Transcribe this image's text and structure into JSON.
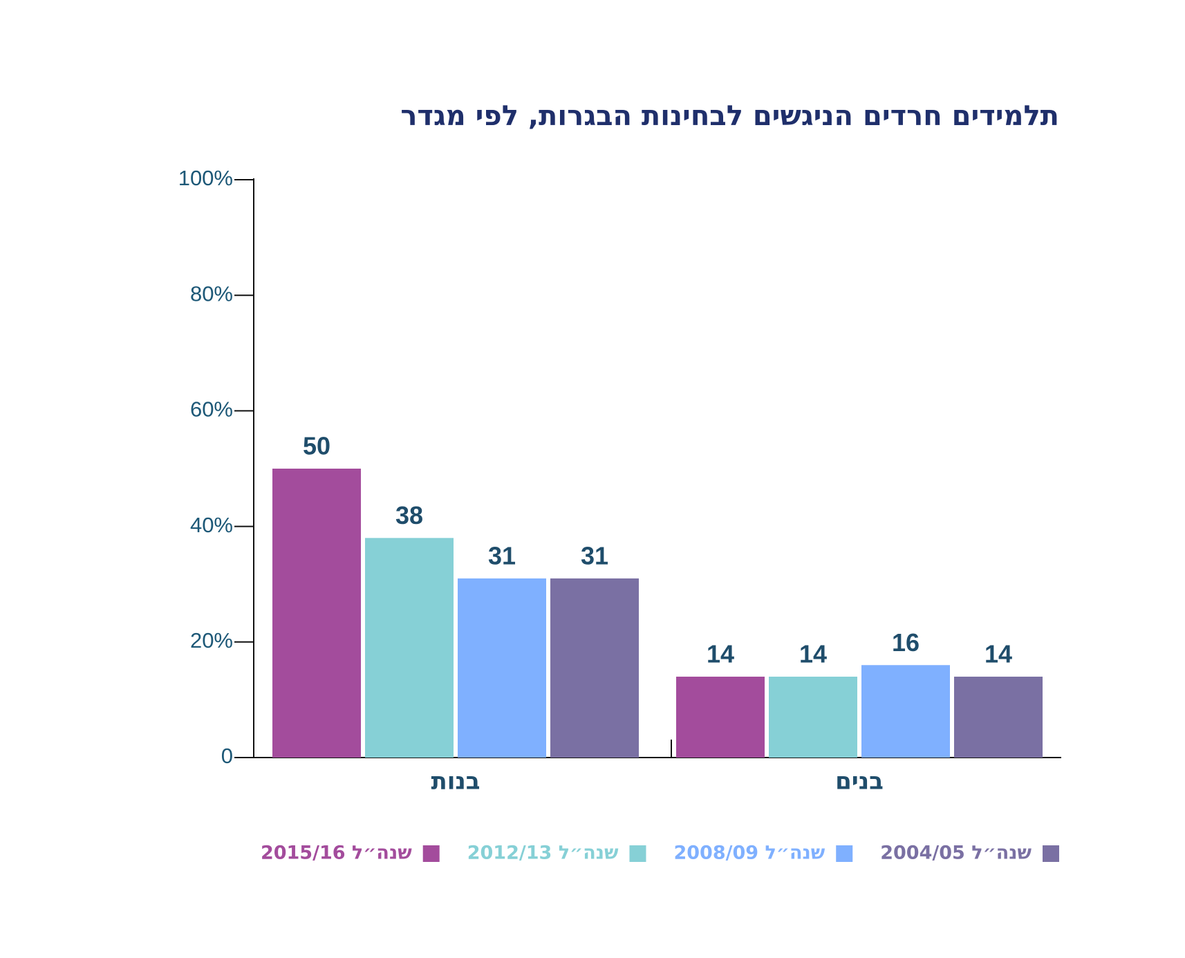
{
  "chart_data": {
    "type": "bar",
    "title": "תלמידים חרדים הניגשים לבחינות הבגרות, לפי מגדר",
    "categories": [
      "בנות",
      "בנים"
    ],
    "series": [
      {
        "name": "שנה״ל 2015/16",
        "color": "#a34c9c",
        "values": [
          50,
          14
        ]
      },
      {
        "name": "שנה״ל 2012/13",
        "color": "#86d0d6",
        "values": [
          38,
          14
        ]
      },
      {
        "name": "שנה״ל 2008/09",
        "color": "#7fb0ff",
        "values": [
          31,
          16
        ]
      },
      {
        "name": "שנה״ל 2004/05",
        "color": "#7a70a3",
        "values": [
          31,
          14
        ]
      }
    ],
    "ylim": [
      0,
      100
    ],
    "yticks": [
      0,
      {
        "value": 20,
        "label": "20%"
      },
      {
        "value": 40,
        "label": "40%"
      },
      {
        "value": 60,
        "label": "60%"
      },
      {
        "value": 80,
        "label": "80%"
      },
      {
        "value": 100,
        "label": "100%"
      }
    ],
    "grid": false
  }
}
